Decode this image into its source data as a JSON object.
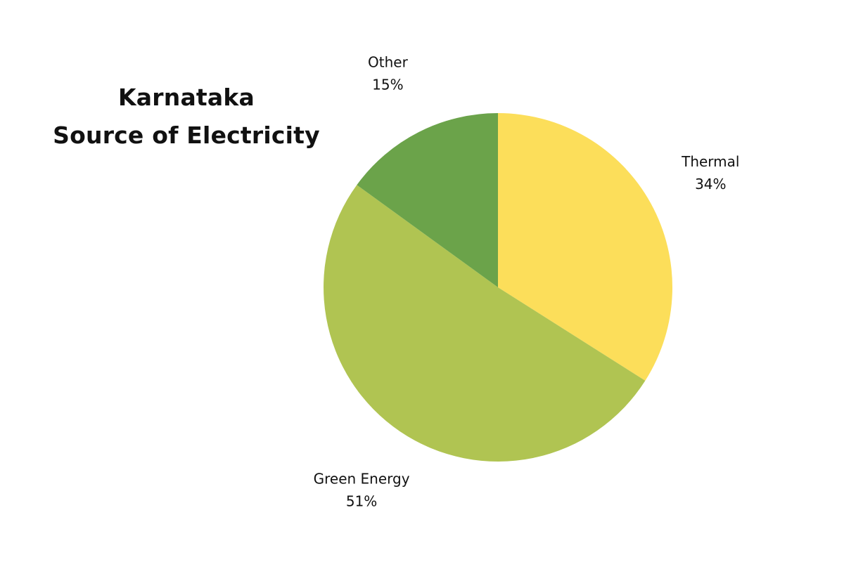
{
  "chart_data": {
    "type": "pie",
    "title_lines": [
      "Karnataka",
      "Source of Electricity"
    ],
    "slices": [
      {
        "label": "Thermal",
        "value": 34,
        "value_label": "34%",
        "color": "#fcde5a"
      },
      {
        "label": "Green Energy",
        "value": 51,
        "value_label": "51%",
        "color": "#b0c452"
      },
      {
        "label": "Other",
        "value": 15,
        "value_label": "15%",
        "color": "#6ba34a"
      }
    ],
    "start_direction": "top",
    "direction": "clockwise",
    "legend": "none",
    "labels": "outside"
  }
}
